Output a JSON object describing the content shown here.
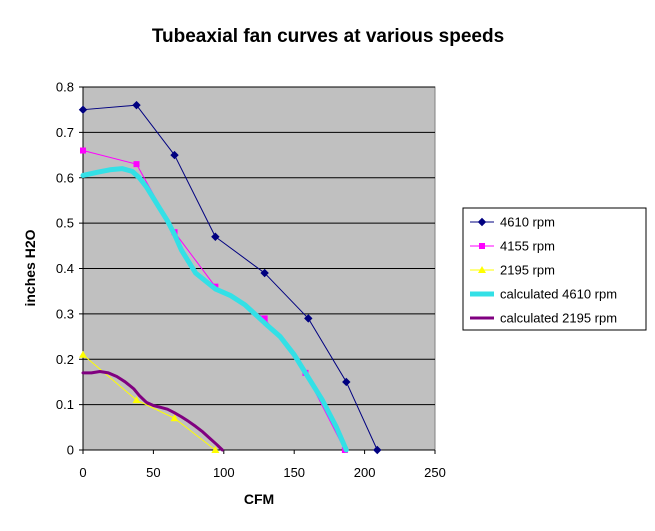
{
  "chart_data": {
    "type": "line",
    "title": "Tubeaxial fan curves at various speeds",
    "xlabel": "CFM",
    "ylabel": "inches H2O",
    "xlim": [
      0,
      250
    ],
    "ylim": [
      0,
      0.8
    ],
    "x_ticks": [
      "0",
      "50",
      "100",
      "150",
      "200",
      "250"
    ],
    "y_ticks": [
      "0",
      "0.1",
      "0.2",
      "0.3",
      "0.4",
      "0.5",
      "0.6",
      "0.7",
      "0.8"
    ],
    "grid": "horizontal",
    "plot_background": "#c0c0c0",
    "legend_position": "right",
    "series": [
      {
        "name": "4610 rpm",
        "color": "#000080",
        "marker": "diamond",
        "line_width": 1,
        "x": [
          0,
          38,
          65,
          94,
          129,
          160,
          187,
          209
        ],
        "y": [
          0.75,
          0.76,
          0.65,
          0.47,
          0.39,
          0.29,
          0.15,
          0.0
        ]
      },
      {
        "name": "4155 rpm",
        "color": "#ff00ff",
        "marker": "square",
        "line_width": 1,
        "x": [
          0,
          38,
          65,
          94,
          129,
          158,
          186
        ],
        "y": [
          0.66,
          0.63,
          0.48,
          0.36,
          0.29,
          0.17,
          0.0
        ]
      },
      {
        "name": "2195 rpm",
        "color": "#ffff00",
        "marker": "triangle",
        "line_width": 1,
        "x": [
          0,
          38,
          65,
          94
        ],
        "y": [
          0.21,
          0.11,
          0.07,
          0.0
        ]
      },
      {
        "name": "calculated 4610 rpm",
        "color": "#33e0e6",
        "marker": "none",
        "line_width": 5,
        "x": [
          0,
          10,
          20,
          28,
          35,
          40,
          45,
          50,
          55,
          60,
          65,
          70,
          80,
          94,
          105,
          115,
          129,
          140,
          150,
          160,
          170,
          180,
          187
        ],
        "y": [
          0.605,
          0.612,
          0.618,
          0.62,
          0.614,
          0.6,
          0.58,
          0.555,
          0.53,
          0.505,
          0.475,
          0.44,
          0.39,
          0.355,
          0.34,
          0.32,
          0.28,
          0.25,
          0.21,
          0.16,
          0.11,
          0.05,
          0.0
        ]
      },
      {
        "name": "calculated 2195 rpm",
        "color": "#800080",
        "marker": "none",
        "line_width": 3,
        "x": [
          0,
          6,
          12,
          18,
          24,
          30,
          36,
          40,
          45,
          50,
          55,
          60,
          65,
          70,
          75,
          80,
          85,
          90,
          95,
          99
        ],
        "y": [
          0.17,
          0.17,
          0.173,
          0.17,
          0.162,
          0.15,
          0.135,
          0.12,
          0.105,
          0.098,
          0.094,
          0.09,
          0.082,
          0.073,
          0.063,
          0.052,
          0.04,
          0.026,
          0.012,
          0.0
        ]
      }
    ]
  }
}
